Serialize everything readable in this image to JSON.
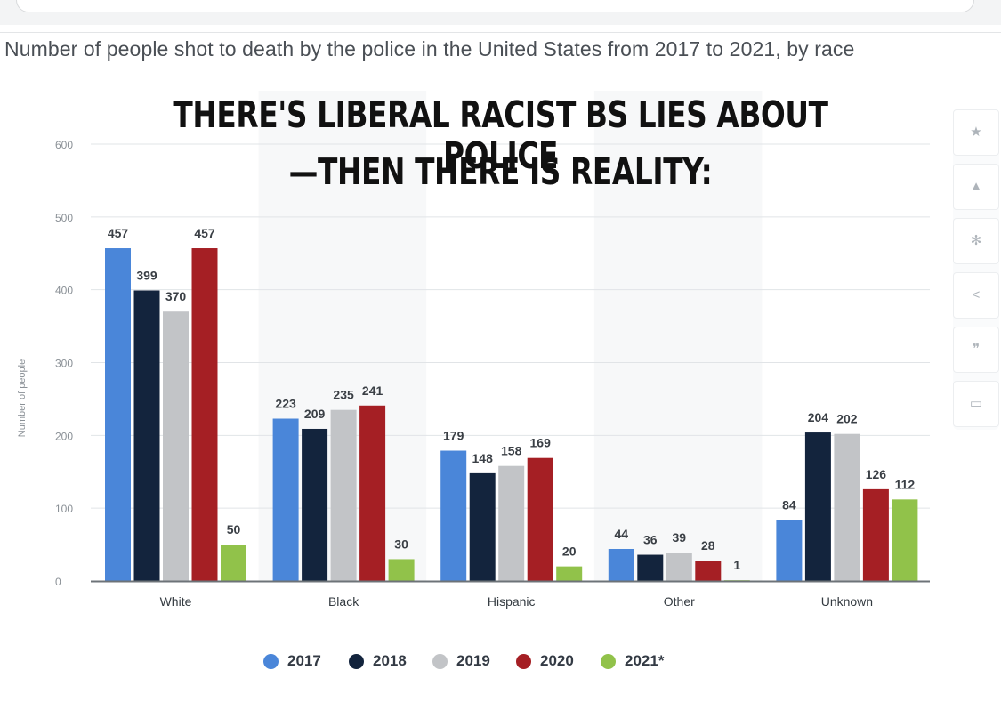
{
  "title": "Number of people shot to death by the police in the United States from 2017 to 2021, by race",
  "overlay_text": {
    "line1": "THERE'S LIBERAL RACIST BS LIES ABOUT POLICE",
    "line2": "—THEN THERE IS REALITY:"
  },
  "sidebar": {
    "icons": [
      "star-icon",
      "bell-icon",
      "gear-icon",
      "share-icon",
      "quote-icon",
      "print-icon"
    ]
  },
  "chart_data": {
    "type": "bar",
    "categories": [
      "White",
      "Black",
      "Hispanic",
      "Other",
      "Unknown"
    ],
    "series": [
      {
        "name": "2017",
        "color": "#4a86d9",
        "values": [
          457,
          223,
          179,
          44,
          84
        ]
      },
      {
        "name": "2018",
        "color": "#13243d",
        "values": [
          399,
          209,
          148,
          36,
          204
        ]
      },
      {
        "name": "2019",
        "color": "#c2c4c7",
        "values": [
          370,
          235,
          158,
          39,
          202
        ]
      },
      {
        "name": "2020",
        "color": "#a51f24",
        "values": [
          457,
          241,
          169,
          28,
          126
        ]
      },
      {
        "name": "2021*",
        "color": "#91c24a",
        "values": [
          50,
          30,
          20,
          1,
          112
        ]
      }
    ],
    "ylabel": "Number of people",
    "xlabel": "",
    "ylim": [
      0,
      600
    ],
    "yticks": [
      0,
      100,
      200,
      300,
      400,
      500,
      600
    ],
    "grid": true,
    "legend": "bottom"
  }
}
